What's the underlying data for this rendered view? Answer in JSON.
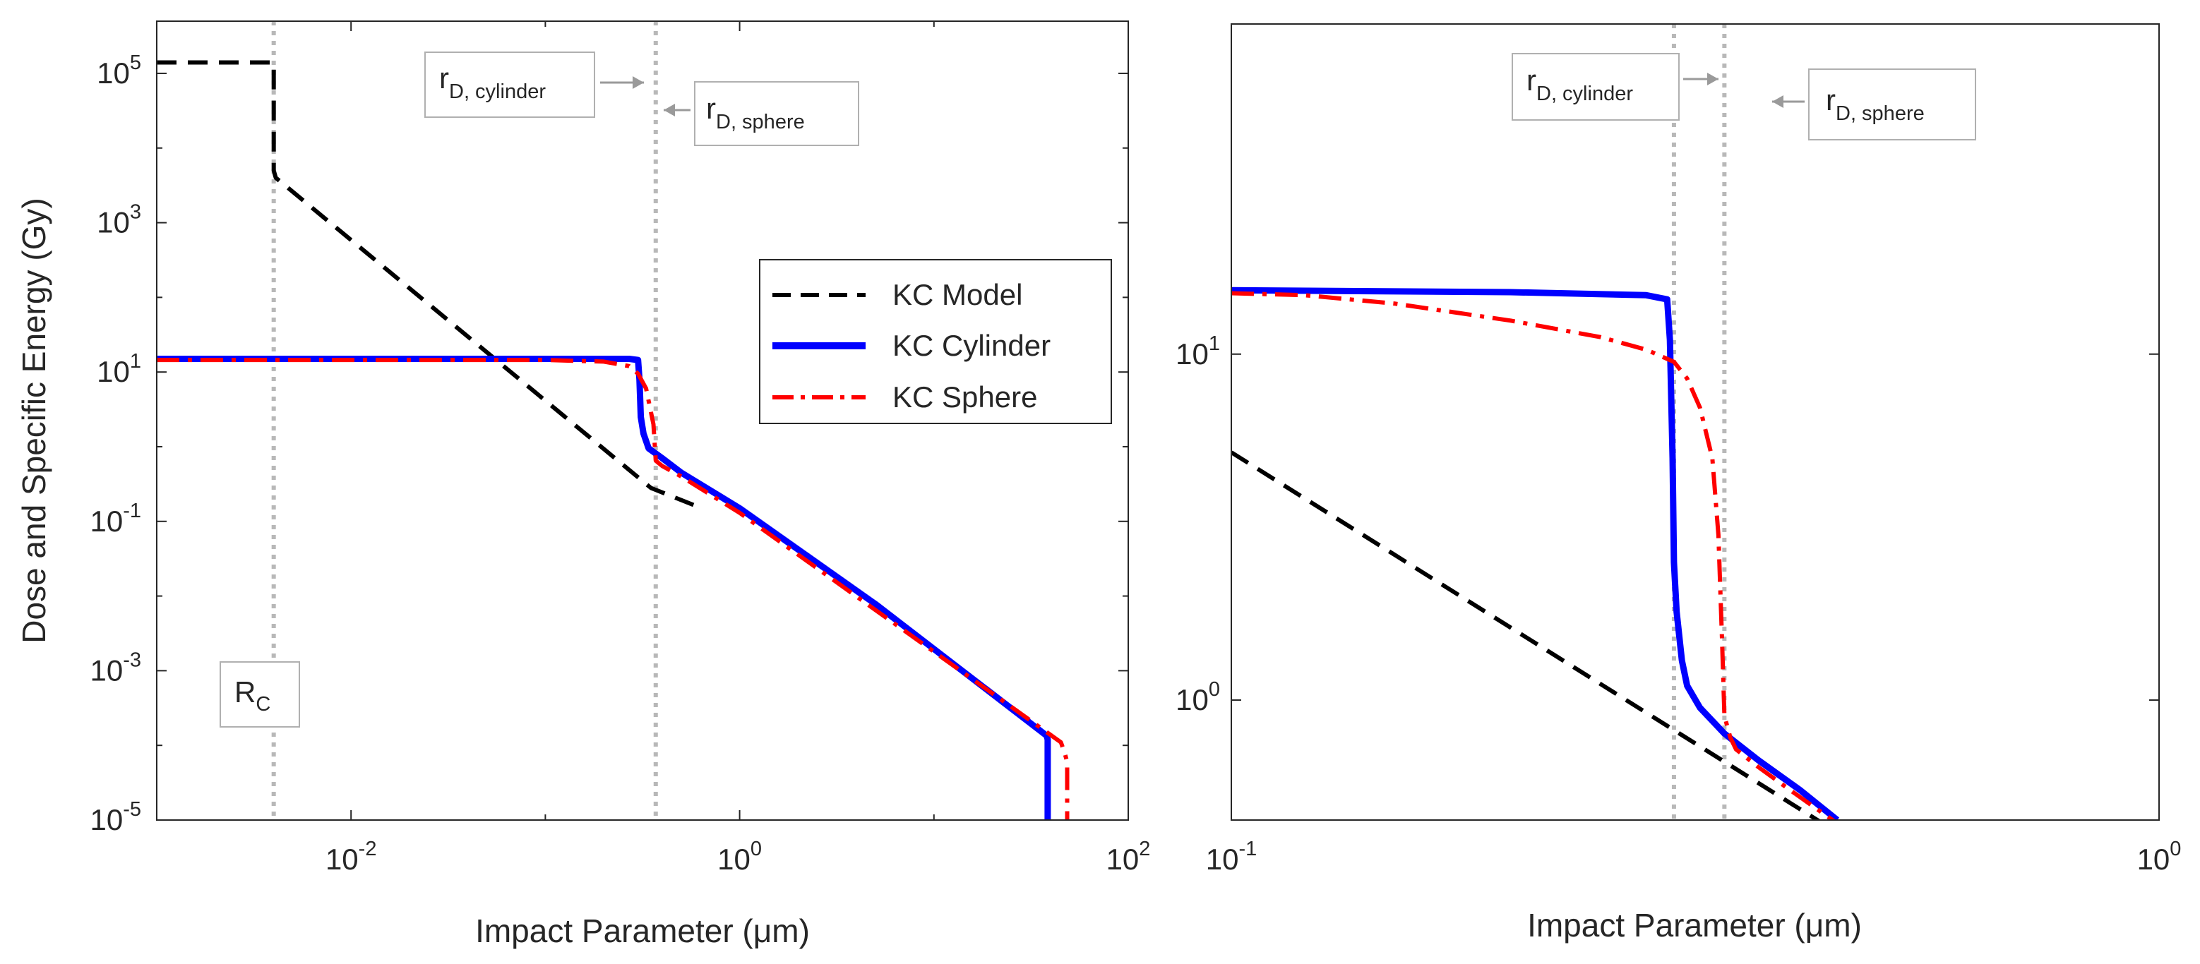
{
  "chart_data": [
    {
      "type": "line",
      "panel": "left",
      "xlabel": "Impact Parameter (μm)",
      "ylabel": "Dose and Specific Energy (Gy)",
      "xscale": "log",
      "yscale": "log",
      "xlim": [
        0.001,
        100
      ],
      "ylim": [
        1e-05,
        500000
      ],
      "xticks": [
        {
          "value": 0.01,
          "base": "10",
          "exp": "-2"
        },
        {
          "value": 1,
          "base": "10",
          "exp": "0"
        },
        {
          "value": 100,
          "base": "10",
          "exp": "2"
        }
      ],
      "yticks": [
        {
          "value": 1e-05,
          "base": "10",
          "exp": "-5"
        },
        {
          "value": 0.001,
          "base": "10",
          "exp": "-3"
        },
        {
          "value": 0.1,
          "base": "10",
          "exp": "-1"
        },
        {
          "value": 10,
          "base": "10",
          "exp": "1"
        },
        {
          "value": 1000,
          "base": "10",
          "exp": "3"
        },
        {
          "value": 100000,
          "base": "10",
          "exp": "5"
        }
      ],
      "legend": {
        "position": "right-middle",
        "entries": [
          {
            "label": "KC Model",
            "series": "KC Model"
          },
          {
            "label": "KC Cylinder",
            "series": "KC Cylinder"
          },
          {
            "label": "KC Sphere",
            "series": "KC Sphere"
          }
        ]
      },
      "vlines": [
        {
          "x": 0.004
        },
        {
          "x": 0.37
        }
      ],
      "annotations": [
        {
          "id": "rc",
          "main": "R",
          "sub": "C"
        },
        {
          "id": "rd-cyl",
          "main": "r",
          "sub": "D, cylinder",
          "arrow": "right"
        },
        {
          "id": "rd-sph",
          "main": "r",
          "sub": "D, sphere",
          "arrow": "left"
        }
      ],
      "series": [
        {
          "name": "KC Model",
          "color": "#000000",
          "style": "dashed",
          "x": [
            0.001,
            0.004,
            0.004,
            0.0041,
            0.35,
            0.6
          ],
          "y": [
            140000,
            140000,
            5000,
            4000,
            0.28,
            0.16
          ]
        },
        {
          "name": "KC Cylinder",
          "color": "#0000ff",
          "style": "solid",
          "x": [
            0.001,
            0.1,
            0.27,
            0.3,
            0.305,
            0.31,
            0.32,
            0.34,
            0.4,
            0.5,
            1,
            5,
            38,
            38.5,
            38.5
          ],
          "y": [
            15,
            15,
            15,
            14.5,
            8,
            2.5,
            1.5,
            0.95,
            0.7,
            0.45,
            0.15,
            0.0078,
            0.000135,
            0.00012,
            1e-05
          ]
        },
        {
          "name": "KC Sphere",
          "color": "#ff0000",
          "style": "dashdot",
          "x": [
            0.001,
            0.1,
            0.2,
            0.27,
            0.3,
            0.33,
            0.36,
            0.37,
            0.4,
            0.5,
            1,
            5,
            45,
            47,
            48.5,
            48.5
          ],
          "y": [
            14.5,
            14.5,
            13.8,
            12,
            9.5,
            6,
            2,
            0.65,
            0.55,
            0.4,
            0.13,
            0.0065,
            0.00011,
            8e-05,
            6e-05,
            1e-05
          ]
        }
      ]
    },
    {
      "type": "line",
      "panel": "right",
      "xlabel": "Impact Parameter (μm)",
      "ylabel": "",
      "xscale": "log",
      "yscale": "log",
      "xlim": [
        0.1,
        1
      ],
      "ylim": [
        0.45,
        90
      ],
      "xticks": [
        {
          "value": 0.1,
          "base": "10",
          "exp": "-1"
        },
        {
          "value": 1,
          "base": "10",
          "exp": "0"
        }
      ],
      "yticks": [
        {
          "value": 1,
          "base": "10",
          "exp": "0"
        },
        {
          "value": 10,
          "base": "10",
          "exp": "1"
        }
      ],
      "vlines": [
        {
          "x": 0.3
        },
        {
          "x": 0.34
        }
      ],
      "annotations": [
        {
          "id": "rd-cyl",
          "main": "r",
          "sub": "D, cylinder",
          "arrow": "right"
        },
        {
          "id": "rd-sph",
          "main": "r",
          "sub": "D, sphere",
          "arrow": "left"
        }
      ],
      "series": [
        {
          "name": "KC Model",
          "color": "#000000",
          "style": "dashed",
          "x": [
            0.1,
            0.44
          ],
          "y": [
            5.2,
            0.43
          ]
        },
        {
          "name": "KC Cylinder",
          "color": "#0000ff",
          "style": "solid",
          "x": [
            0.1,
            0.2,
            0.28,
            0.295,
            0.297,
            0.299,
            0.3,
            0.302,
            0.306,
            0.31,
            0.32,
            0.34,
            0.37,
            0.41,
            0.45
          ],
          "y": [
            15.3,
            15.1,
            14.8,
            14.4,
            11,
            5,
            2.5,
            1.8,
            1.3,
            1.1,
            0.95,
            0.8,
            0.67,
            0.55,
            0.45
          ]
        },
        {
          "name": "KC Sphere",
          "color": "#ff0000",
          "style": "dashdot",
          "x": [
            0.1,
            0.12,
            0.15,
            0.2,
            0.25,
            0.28,
            0.3,
            0.31,
            0.32,
            0.33,
            0.335,
            0.338,
            0.34,
            0.345,
            0.35,
            0.37,
            0.4,
            0.45
          ],
          "y": [
            15,
            14.8,
            14,
            12.5,
            11.2,
            10.3,
            9.5,
            8.5,
            7,
            5,
            3,
            1.5,
            0.9,
            0.78,
            0.72,
            0.64,
            0.55,
            0.44
          ]
        }
      ]
    }
  ]
}
